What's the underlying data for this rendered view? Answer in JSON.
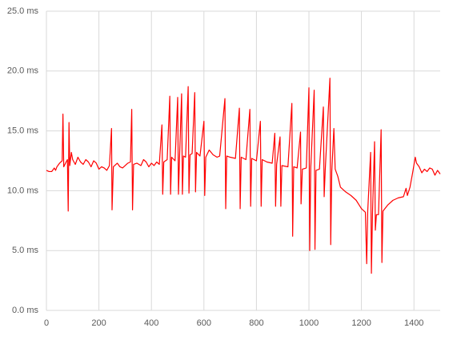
{
  "chart_data": {
    "type": "line",
    "color": "#ff0000",
    "grid": true,
    "xlim": [
      0,
      1500
    ],
    "xticks": [
      0,
      200,
      400,
      600,
      800,
      1000,
      1200,
      1400
    ],
    "ylim": [
      0,
      25
    ],
    "yticks": [
      {
        "value": 0,
        "label": "0.0 ms"
      },
      {
        "value": 5,
        "label": "5.0 ms"
      },
      {
        "value": 10,
        "label": "10.0 ms"
      },
      {
        "value": 15,
        "label": "15.0 ms"
      },
      {
        "value": 20,
        "label": "20.0 ms"
      },
      {
        "value": 25,
        "label": "25.0 ms"
      }
    ],
    "x": [
      0,
      10,
      20,
      30,
      35,
      40,
      50,
      60,
      63,
      66,
      75,
      80,
      83,
      86,
      89,
      95,
      100,
      110,
      120,
      130,
      140,
      150,
      160,
      170,
      180,
      190,
      200,
      210,
      220,
      230,
      240,
      248,
      250,
      255,
      270,
      280,
      290,
      300,
      310,
      320,
      325,
      328,
      332,
      345,
      360,
      370,
      380,
      390,
      400,
      410,
      420,
      430,
      440,
      443,
      447,
      460,
      470,
      473,
      477,
      490,
      500,
      503,
      507,
      515,
      518,
      522,
      530,
      540,
      543,
      547,
      555,
      565,
      568,
      572,
      585,
      600,
      603,
      607,
      620,
      635,
      650,
      660,
      680,
      683,
      687,
      700,
      720,
      735,
      738,
      742,
      760,
      775,
      778,
      782,
      800,
      815,
      818,
      822,
      840,
      860,
      870,
      873,
      877,
      890,
      893,
      897,
      920,
      935,
      938,
      942,
      955,
      968,
      970,
      975,
      990,
      1000,
      1003,
      1007,
      1020,
      1023,
      1027,
      1040,
      1055,
      1058,
      1062,
      1080,
      1083,
      1087,
      1095,
      1100,
      1110,
      1120,
      1140,
      1160,
      1180,
      1200,
      1215,
      1220,
      1224,
      1235,
      1238,
      1242,
      1250,
      1253,
      1257,
      1265,
      1275,
      1278,
      1282,
      1300,
      1320,
      1340,
      1360,
      1370,
      1375,
      1385,
      1395,
      1405,
      1410,
      1420,
      1430,
      1440,
      1450,
      1460,
      1470,
      1480,
      1490,
      1500
    ],
    "values": [
      11.7,
      11.6,
      11.6,
      11.9,
      11.7,
      12.0,
      12.3,
      12.5,
      16.4,
      12.0,
      12.4,
      12.6,
      8.3,
      15.7,
      12.1,
      13.2,
      12.6,
      12.2,
      12.8,
      12.4,
      12.2,
      12.6,
      12.4,
      12.0,
      12.5,
      12.3,
      11.8,
      12.0,
      11.9,
      11.7,
      12.1,
      15.2,
      8.4,
      12.0,
      12.3,
      12.0,
      11.9,
      12.1,
      12.3,
      12.4,
      16.8,
      8.4,
      12.2,
      12.3,
      12.1,
      12.6,
      12.4,
      12.0,
      12.3,
      12.1,
      12.4,
      12.2,
      15.5,
      9.7,
      12.4,
      12.6,
      17.9,
      9.7,
      12.8,
      12.5,
      17.8,
      9.7,
      12.7,
      18.1,
      9.7,
      12.9,
      12.8,
      18.7,
      9.8,
      13.0,
      13.1,
      18.2,
      9.9,
      13.2,
      12.9,
      15.8,
      9.6,
      12.8,
      13.4,
      13.0,
      12.8,
      12.9,
      17.7,
      8.5,
      12.9,
      12.8,
      12.7,
      16.9,
      8.5,
      12.8,
      12.6,
      16.8,
      8.7,
      12.7,
      12.5,
      15.8,
      8.7,
      12.6,
      12.4,
      12.3,
      14.8,
      8.7,
      12.2,
      14.5,
      8.7,
      12.1,
      12.0,
      17.3,
      6.2,
      12.0,
      11.9,
      14.9,
      8.9,
      11.8,
      11.9,
      18.6,
      5.0,
      11.9,
      18.4,
      5.1,
      11.7,
      11.8,
      17.0,
      9.5,
      11.7,
      19.4,
      5.5,
      11.6,
      15.2,
      11.8,
      11.2,
      10.3,
      9.9,
      9.6,
      9.2,
      8.5,
      8.2,
      3.9,
      8.3,
      13.2,
      3.1,
      8.0,
      14.1,
      6.7,
      8.0,
      8.0,
      15.1,
      4.0,
      8.3,
      8.8,
      9.2,
      9.4,
      9.5,
      10.2,
      9.6,
      10.3,
      11.5,
      12.8,
      12.3,
      12.0,
      11.5,
      11.8,
      11.6,
      11.9,
      11.8,
      11.3,
      11.7,
      11.4
    ]
  }
}
